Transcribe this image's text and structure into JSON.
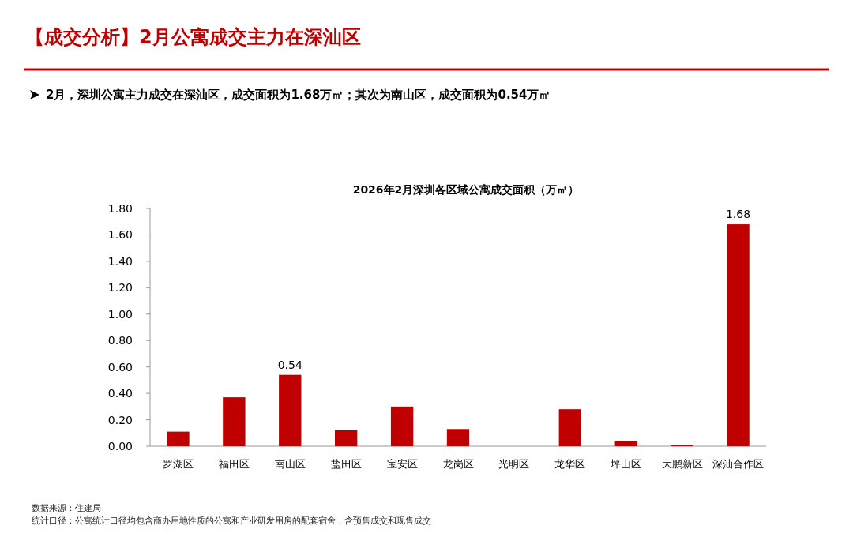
{
  "chart_data": {
    "type": "bar",
    "title": "2026年2月深圳各区域公寓成交面积（万㎡）",
    "subtitle": "2月，深圳公寓主力成交在深汕区，成交面积为1.68万㎡；其次为南山区，成交面积为0.54万㎡",
    "annotations": [
      "【成交分析】2月公寓成交主力在深汕区",
      "数据来源：住建局",
      "统计口径：公寓统计口径均包含商办用地性质的公寓和产业研发用房的配套宿舍，含预售成交和现售成交"
    ],
    "categories": [
      "罗湖区",
      "福田区",
      "南山区",
      "盐田区",
      "宝安区",
      "龙岗区",
      "光明区",
      "龙华区",
      "坪山区",
      "大鹏新区",
      "深汕合作区"
    ],
    "values": [
      0.11,
      0.37,
      0.54,
      0.12,
      0.3,
      0.13,
      0,
      0.28,
      0.04,
      0.01,
      1.68
    ],
    "value_labels": [
      null,
      null,
      "0.54",
      null,
      null,
      null,
      null,
      null,
      null,
      null,
      "1.68"
    ],
    "color": "#c00000",
    "ylim": [
      0,
      1.8
    ],
    "yticks": [
      {
        "value": 0,
        "label": "0.00"
      },
      {
        "value": 0.2,
        "label": "0.20"
      },
      {
        "value": 0.4,
        "label": "0.40"
      },
      {
        "value": 0.6,
        "label": "0.60"
      },
      {
        "value": 0.8,
        "label": "0.80"
      },
      {
        "value": 1.0,
        "label": "1.00"
      },
      {
        "value": 1.2,
        "label": "1.20"
      },
      {
        "value": 1.4,
        "label": "1.40"
      },
      {
        "value": 1.6,
        "label": "1.60"
      },
      {
        "value": 1.8,
        "label": "1.80"
      }
    ],
    "grid": false
  }
}
